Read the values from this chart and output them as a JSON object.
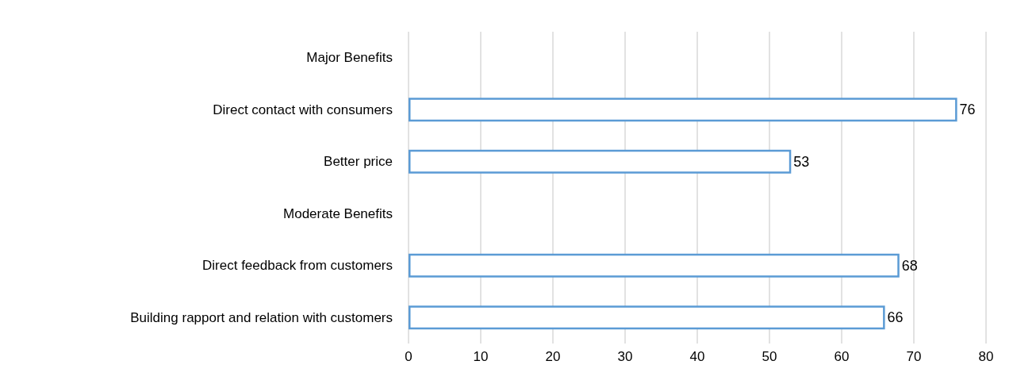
{
  "chart_data": {
    "type": "bar",
    "orientation": "horizontal",
    "categories": [
      "Major Benefits",
      "Direct contact with consumers",
      "Better price",
      "Moderate Benefits",
      "Direct feedback from customers",
      "Building rapport and relation with customers"
    ],
    "values": [
      null,
      76,
      53,
      null,
      68,
      66
    ],
    "color": "#5b9bd5",
    "xlim": [
      0,
      80
    ],
    "xticks": [
      0,
      10,
      20,
      30,
      40,
      50,
      60,
      70,
      80
    ],
    "grid": "x",
    "data_labels": true
  }
}
